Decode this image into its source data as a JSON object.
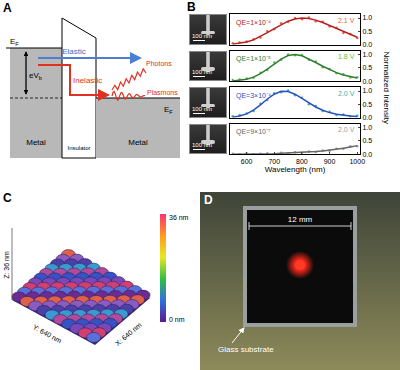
{
  "panel_A": {
    "label": "A",
    "ef_left": {
      "text": "E",
      "sub": "F"
    },
    "ef_right": {
      "text": "E",
      "sub": "F"
    },
    "bias": {
      "text": "eV",
      "sub": "b"
    },
    "insulator": "Insulator",
    "metal_left": "Metal",
    "metal_right": "Metal",
    "elastic": "Elastic",
    "inelastic": "Inelastic",
    "photons": "Photons",
    "plasmons": "Plasmons"
  },
  "panel_B": {
    "label": "B",
    "image_scale_labels": [
      "100 nm",
      "100 nm",
      "100 nm",
      "100 nm"
    ]
  },
  "chart_data": [
    {
      "type": "scatter",
      "ylabel": "Normalized Intensity",
      "x": [
        550,
        575,
        600,
        625,
        650,
        675,
        700,
        725,
        750,
        775,
        800,
        825,
        850,
        875,
        900,
        925,
        950,
        975,
        1000
      ],
      "xlim": [
        540,
        1010
      ],
      "ylim": [
        0,
        1.15
      ],
      "yticks": [
        {
          "value": 0,
          "label": "0.0"
        },
        {
          "value": 0.5,
          "label": "0.5"
        },
        {
          "value": 1,
          "label": "1.0"
        }
      ],
      "tick_labels": "y",
      "annotations": [
        "QE=1×10⁻⁴",
        "2.1 V"
      ],
      "series": [
        {
          "type": "scatter",
          "marker": "circle",
          "color": "#f06040",
          "values": [
            0.05,
            0.08,
            0.12,
            0.2,
            0.27,
            0.5,
            0.58,
            0.8,
            0.85,
            1.0,
            0.95,
            1.02,
            0.88,
            0.86,
            0.68,
            0.63,
            0.44,
            0.4,
            0.25
          ]
        },
        {
          "type": "line",
          "color": "#b22222",
          "values": [
            0.02,
            0.05,
            0.1,
            0.18,
            0.3,
            0.45,
            0.6,
            0.75,
            0.88,
            0.96,
            1.0,
            0.98,
            0.92,
            0.83,
            0.72,
            0.6,
            0.48,
            0.37,
            0.28
          ]
        }
      ]
    },
    {
      "type": "scatter",
      "x": [
        550,
        575,
        600,
        625,
        650,
        675,
        700,
        725,
        750,
        775,
        800,
        825,
        850,
        875,
        900,
        925,
        950,
        975,
        1000
      ],
      "xlim": [
        540,
        1010
      ],
      "ylim": [
        0,
        1.15
      ],
      "yticks": [
        {
          "value": 0,
          "label": "0.0"
        },
        {
          "value": 0.5,
          "label": "0.5"
        },
        {
          "value": 1,
          "label": "1.0"
        }
      ],
      "tick_labels": "y",
      "annotations": [
        "QE=1×10⁻⁵",
        "1.8 V"
      ],
      "series": [
        {
          "type": "scatter",
          "marker": "circle",
          "color": "#66bb44",
          "values": [
            0.04,
            0.06,
            0.1,
            0.13,
            0.32,
            0.42,
            0.7,
            0.8,
            1.0,
            0.97,
            0.98,
            0.8,
            0.74,
            0.52,
            0.46,
            0.3,
            0.26,
            0.14,
            0.15
          ]
        },
        {
          "type": "line",
          "color": "#2e7d32",
          "values": [
            0.01,
            0.03,
            0.07,
            0.15,
            0.28,
            0.45,
            0.65,
            0.83,
            0.96,
            1.0,
            0.95,
            0.84,
            0.7,
            0.56,
            0.43,
            0.32,
            0.23,
            0.17,
            0.12
          ]
        }
      ]
    },
    {
      "type": "scatter",
      "x": [
        550,
        575,
        600,
        625,
        650,
        675,
        700,
        725,
        750,
        775,
        800,
        825,
        850,
        875,
        900,
        925,
        950,
        975,
        1000
      ],
      "xlim": [
        540,
        1010
      ],
      "ylim": [
        0,
        1.15
      ],
      "yticks": [
        {
          "value": 0,
          "label": "0.0"
        },
        {
          "value": 0.5,
          "label": "0.5"
        },
        {
          "value": 1,
          "label": "1.0"
        }
      ],
      "tick_labels": "y",
      "annotations": [
        "QE=3×10⁻⁴",
        "2.0 V"
      ],
      "series": [
        {
          "type": "scatter",
          "marker": "circle",
          "color": "#33b5a5",
          "values": [
            0.05,
            0.1,
            0.16,
            0.25,
            0.52,
            0.66,
            0.92,
            0.95,
            1.02,
            0.84,
            0.75,
            0.5,
            0.44,
            0.25,
            0.22,
            0.1,
            0.12,
            0.05,
            0.07
          ]
        },
        {
          "type": "line",
          "color": "#2f4fbf",
          "values": [
            0.02,
            0.06,
            0.14,
            0.28,
            0.48,
            0.7,
            0.88,
            0.99,
            0.98,
            0.88,
            0.72,
            0.55,
            0.4,
            0.28,
            0.19,
            0.13,
            0.09,
            0.06,
            0.04
          ]
        }
      ]
    },
    {
      "type": "scatter",
      "xlabel": "Wavelength (nm)",
      "x": [
        550,
        575,
        600,
        625,
        650,
        675,
        700,
        725,
        750,
        775,
        800,
        825,
        850,
        875,
        900,
        925,
        950,
        975,
        1000
      ],
      "xlim": [
        540,
        1010
      ],
      "xticks": [
        600,
        700,
        800,
        900,
        1000
      ],
      "ylim": [
        0,
        1.15
      ],
      "yticks": [
        {
          "value": 0,
          "label": "0.0"
        },
        {
          "value": 0.5,
          "label": "0.5"
        },
        {
          "value": 1,
          "label": "1.0"
        }
      ],
      "annotations": [
        "QE=9×10⁻⁷",
        "2.0 V"
      ],
      "series": [
        {
          "type": "scatter",
          "marker": "circle",
          "color": "#999999",
          "values": [
            0.02,
            0.0,
            0.03,
            0.0,
            0.02,
            0.03,
            0.01,
            0.05,
            0.03,
            0.07,
            0.05,
            0.1,
            0.08,
            0.14,
            0.13,
            0.2,
            0.2,
            0.3,
            0.3
          ]
        },
        {
          "type": "line",
          "color": "#666666",
          "values": [
            0.0,
            0.0,
            0.0,
            0.01,
            0.01,
            0.02,
            0.02,
            0.03,
            0.04,
            0.05,
            0.06,
            0.08,
            0.1,
            0.12,
            0.15,
            0.18,
            0.22,
            0.27,
            0.32
          ]
        }
      ]
    }
  ],
  "panel_C": {
    "label": "C",
    "z_axis": "Z: 36 nm",
    "y_axis": "Y: 640 nm",
    "x_axis": "X: 640 nm",
    "colorbar_top": "36 nm",
    "colorbar_bottom": "0 nm"
  },
  "panel_D": {
    "label": "D",
    "width_label": "12 mm",
    "substrate_label": "Glass substrate"
  }
}
